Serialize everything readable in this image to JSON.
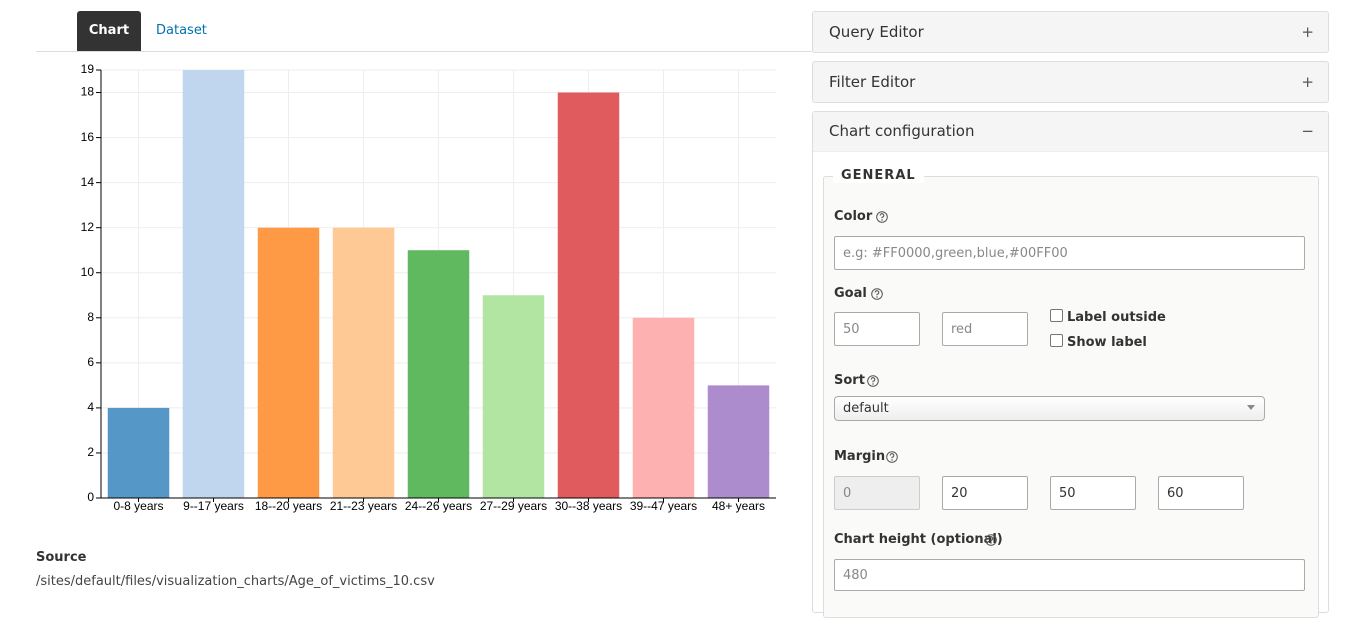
{
  "tabs": [
    "Chart",
    "Dataset"
  ],
  "chart_data": {
    "type": "bar",
    "categories": [
      "0-8 years",
      "9--17 years",
      "18--20 years",
      "21--23 years",
      "24--26 years",
      "27--29 years",
      "30--38 years",
      "39--47 years",
      "48+ years"
    ],
    "values": [
      4,
      19,
      12,
      12,
      11,
      9,
      18,
      8,
      5
    ],
    "colors": [
      "#5598c8",
      "#c0d5ee",
      "#fe9a45",
      "#fec994",
      "#60b85f",
      "#b2e4a2",
      "#e05b5d",
      "#fdb1b0",
      "#ac8ccc"
    ],
    "ylim": [
      0,
      19
    ],
    "yticks": [
      0,
      2,
      4,
      6,
      8,
      10,
      12,
      14,
      16,
      18,
      19
    ],
    "grid": true
  },
  "source": {
    "label": "Source",
    "path": "/sites/default/files/visualization_charts/Age_of_victims_10.csv"
  },
  "panels": [
    {
      "title": "Query Editor",
      "toggle": "+"
    },
    {
      "title": "Filter Editor",
      "toggle": "+"
    },
    {
      "title": "Chart configuration",
      "toggle": "−"
    }
  ],
  "config": {
    "legend": "GENERAL",
    "color": {
      "label": "Color",
      "placeholder": "e.g: #FF0000,green,blue,#00FF00"
    },
    "goal": {
      "label": "Goal",
      "value": "50",
      "color": "red",
      "options": [
        "Label outside",
        "Show label"
      ]
    },
    "sort": {
      "label": "Sort",
      "value": "default"
    },
    "margin": {
      "label": "Margin",
      "values": [
        "0",
        "20",
        "50",
        "60"
      ]
    },
    "chart_height": {
      "label": "Chart height (optional)",
      "value": "480"
    }
  }
}
